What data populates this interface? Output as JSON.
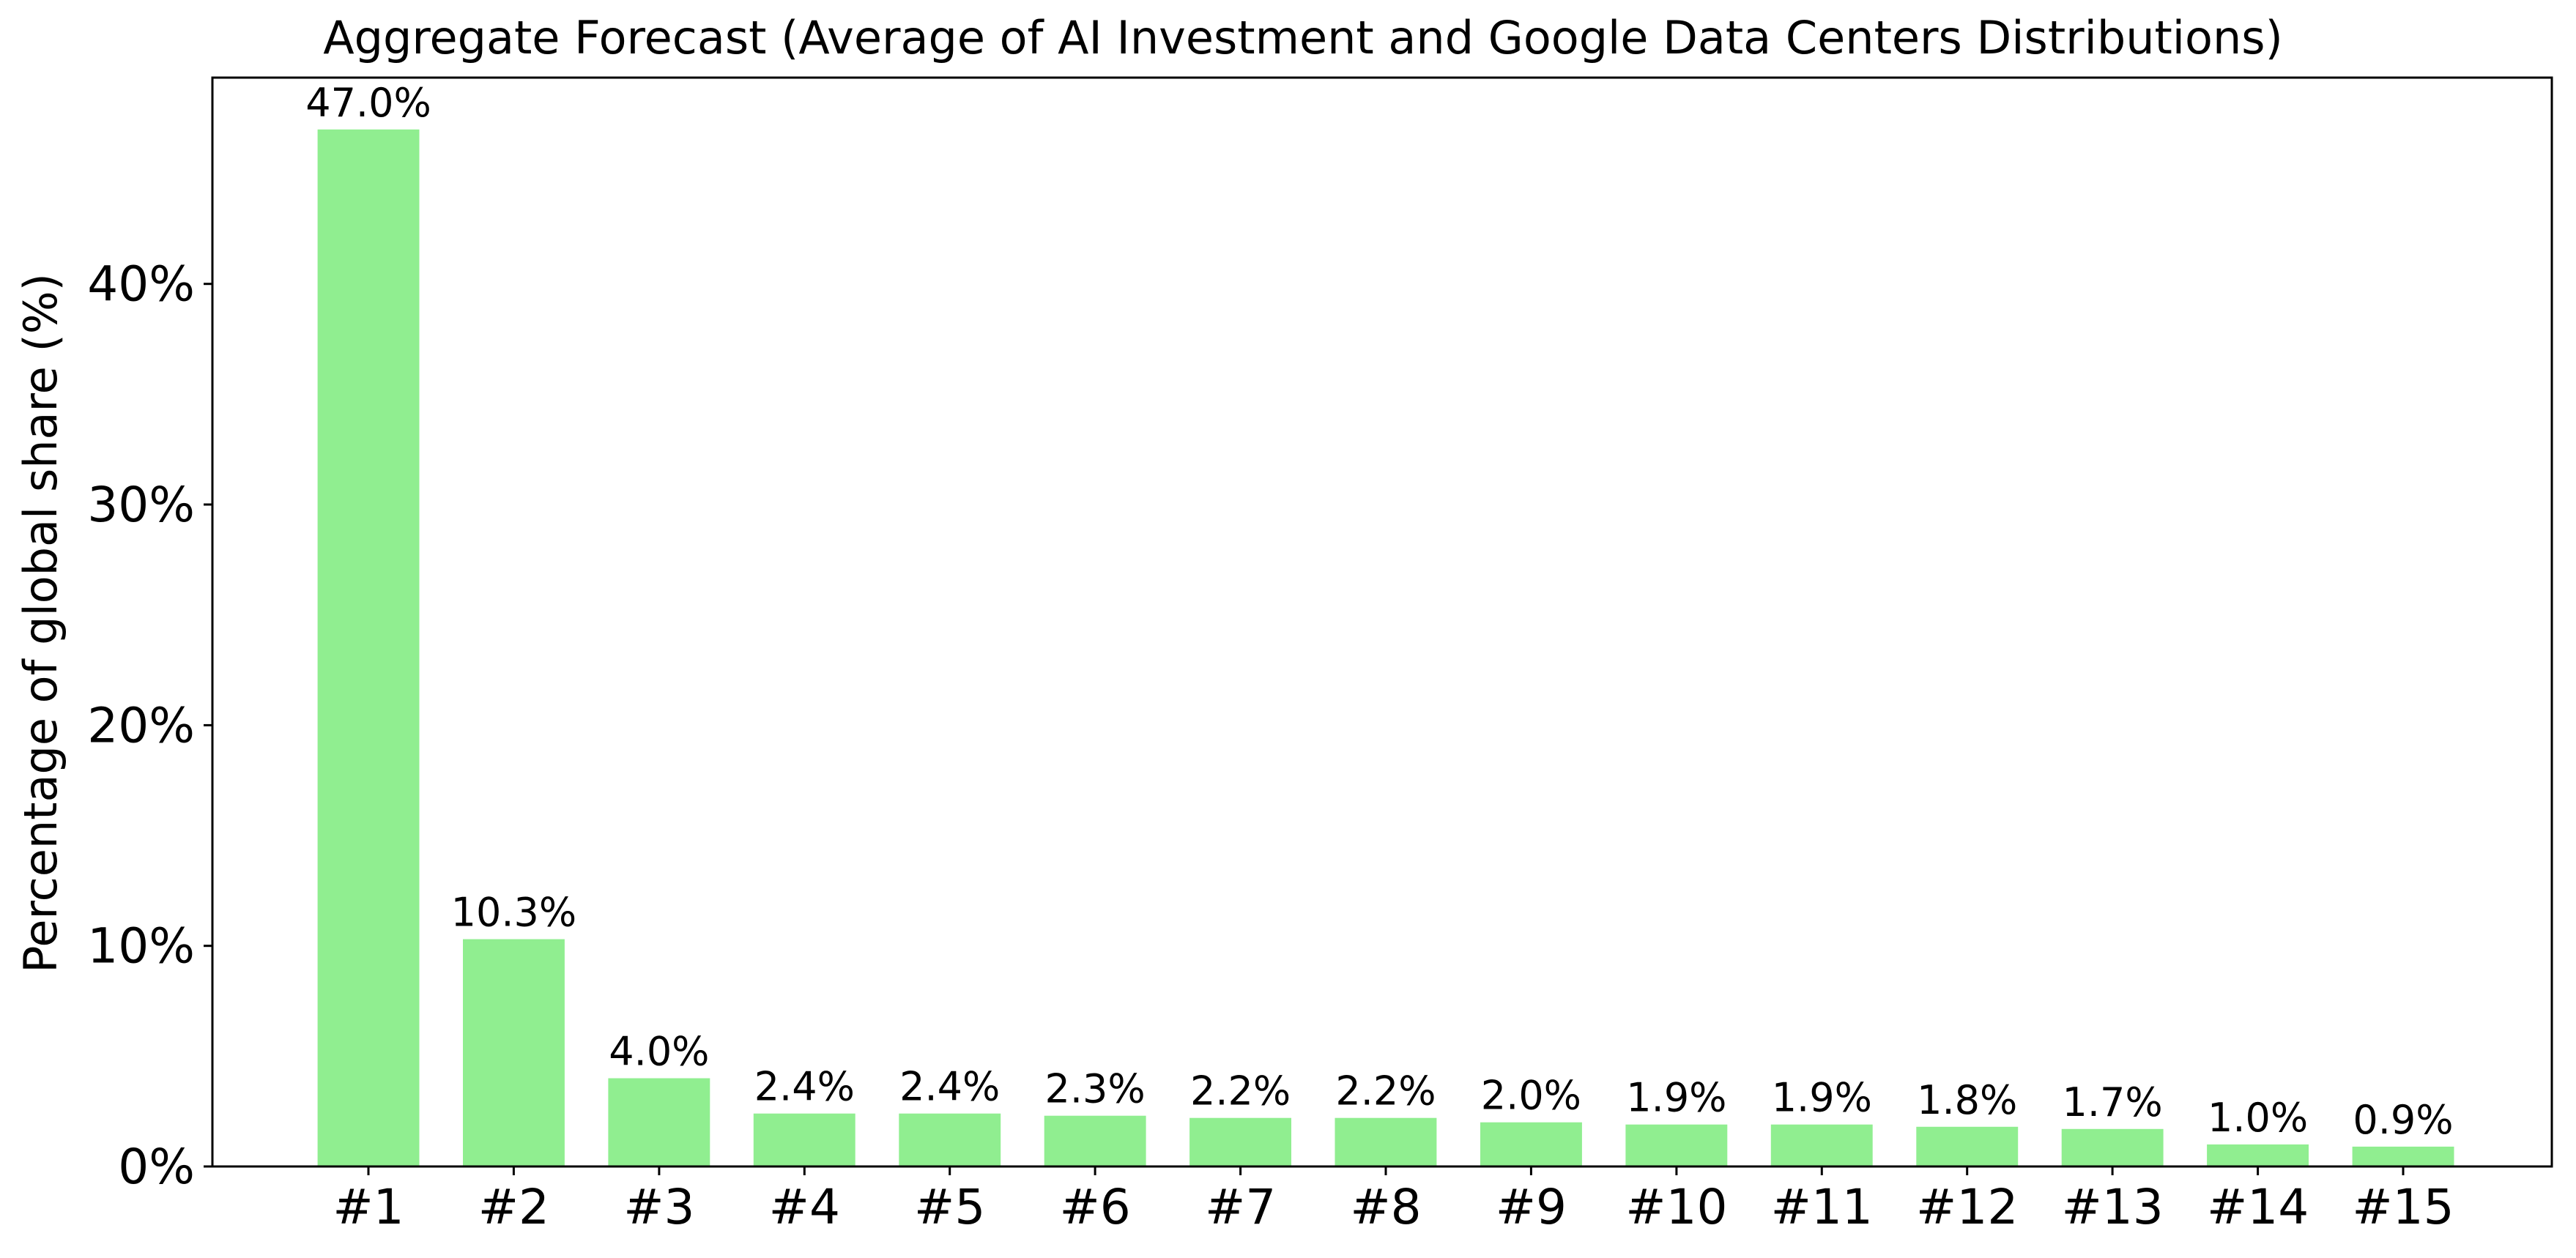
{
  "chart_data": {
    "type": "bar",
    "title": "Aggregate Forecast (Average of AI Investment and Google Data Centers Distributions)",
    "xlabel": "",
    "ylabel": "Percentage of global share (%)",
    "categories": [
      "#1",
      "#2",
      "#3",
      "#4",
      "#5",
      "#6",
      "#7",
      "#8",
      "#9",
      "#10",
      "#11",
      "#12",
      "#13",
      "#14",
      "#15"
    ],
    "values": [
      47.0,
      10.3,
      4.0,
      2.4,
      2.4,
      2.3,
      2.2,
      2.2,
      2.0,
      1.9,
      1.9,
      1.8,
      1.7,
      1.0,
      0.9
    ],
    "value_labels": [
      "47.0%",
      "10.3%",
      "4.0%",
      "2.4%",
      "2.4%",
      "2.3%",
      "2.2%",
      "2.2%",
      "2.0%",
      "1.9%",
      "1.9%",
      "1.8%",
      "1.7%",
      "1.0%",
      "0.9%"
    ],
    "yticks": [
      0,
      10,
      20,
      30,
      40
    ],
    "ytick_labels": [
      "0%",
      "10%",
      "20%",
      "30%",
      "40%"
    ],
    "ylim": [
      0,
      49.35
    ],
    "grid": false,
    "legend": "none",
    "bar_color": "#90ee90",
    "axis_color": "#000000"
  }
}
